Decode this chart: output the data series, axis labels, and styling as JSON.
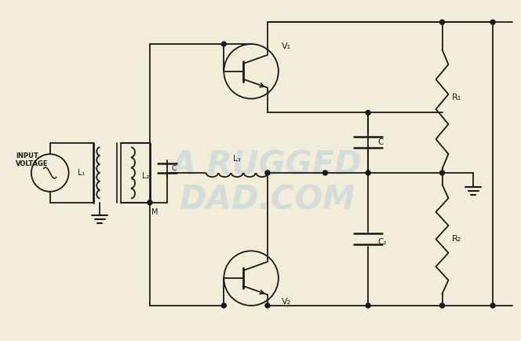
{
  "bg_color": "#f2edd8",
  "line_color": "#1a1a1a",
  "watermark_color": "#b8cfe0",
  "labels": {
    "input_voltage": "INPUT\nVOLTAGE",
    "L1": "L₁",
    "L2": "L₂",
    "L3": "L₃",
    "M": "M",
    "C_small": "C",
    "C_cap": "C",
    "C2": "C₂",
    "R1": "R₁",
    "R2": "R₂",
    "V1": "V₁",
    "V2": "V₂"
  }
}
